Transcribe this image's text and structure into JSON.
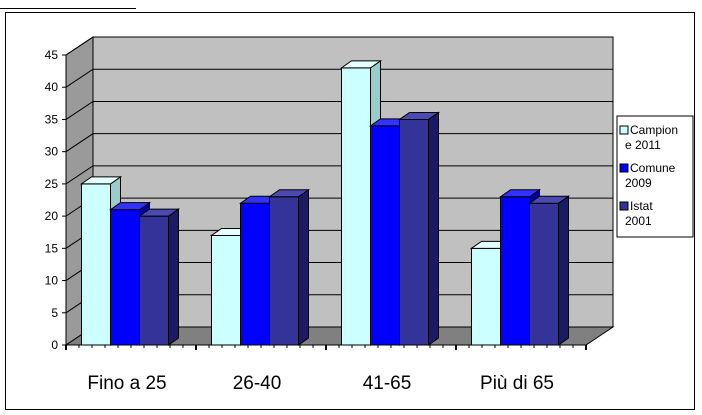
{
  "chart_data": {
    "type": "bar",
    "style": "3d-clustered-column",
    "categories": [
      "Fino a 25",
      "26-40",
      "41-65",
      "Più di 65"
    ],
    "series": [
      {
        "name": "Campione 2011",
        "legend_lines": [
          "Campion",
          "e 2011"
        ],
        "values": [
          25,
          17,
          43,
          15
        ],
        "color": "#ccffff",
        "side": "#99cccc",
        "top": "#e6ffff"
      },
      {
        "name": "Comune 2009",
        "legend_lines": [
          "Comune",
          "2009"
        ],
        "values": [
          21,
          22,
          34,
          23
        ],
        "color": "#0000ff",
        "side": "#0000a0",
        "top": "#3333ff"
      },
      {
        "name": "Istat 2001",
        "legend_lines": [
          "Istat",
          "2001"
        ],
        "values": [
          20,
          23,
          35,
          22
        ],
        "color": "#333399",
        "side": "#1a1a66",
        "top": "#4a4ab0"
      }
    ],
    "yticks": [
      0,
      5,
      10,
      15,
      20,
      25,
      30,
      35,
      40,
      45
    ],
    "ylim": [
      0,
      45
    ],
    "grid": true,
    "wall_color": "#c0c0c0",
    "legend_position": "right",
    "title": "",
    "xlabel": "",
    "ylabel": ""
  }
}
